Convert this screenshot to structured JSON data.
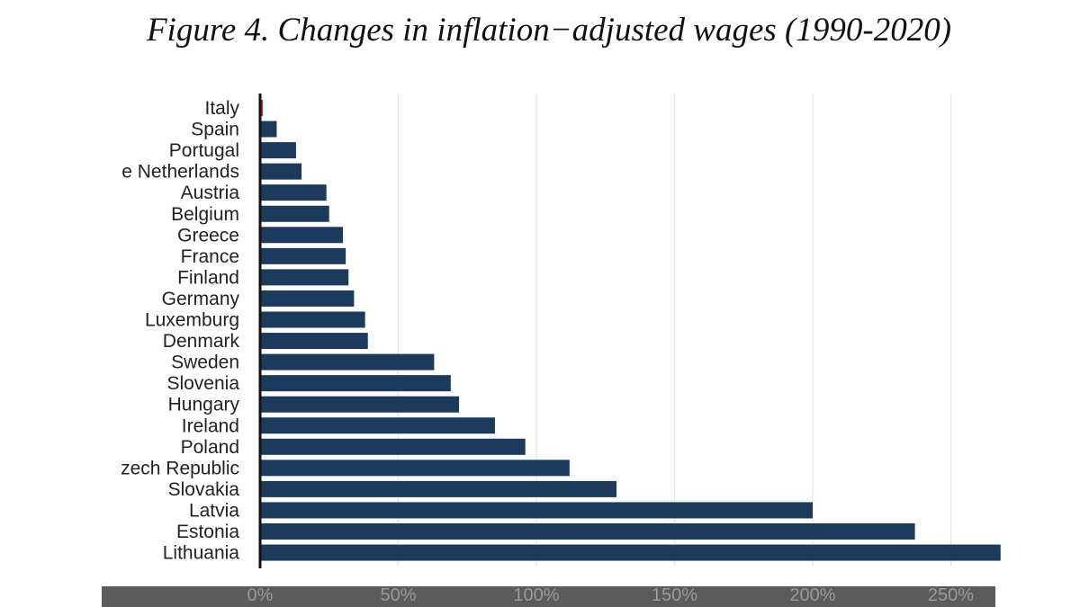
{
  "title": "Figure 4. Changes in inflation−adjusted wages (1990-2020)",
  "chart_data": {
    "type": "bar",
    "orientation": "horizontal",
    "title": "Figure 4. Changes in inflation−adjusted wages (1990-2020)",
    "xlabel": "",
    "ylabel": "",
    "categories": [
      "Italy",
      "Spain",
      "Portugal",
      "e Netherlands",
      "Austria",
      "Belgium",
      "Greece",
      "France",
      "Finland",
      "Germany",
      "Luxemburg",
      "Denmark",
      "Sweden",
      "Slovenia",
      "Hungary",
      "Ireland",
      "Poland",
      "zech Republic",
      "Slovakia",
      "Latvia",
      "Estonia",
      "Lithuania"
    ],
    "values": [
      1,
      6,
      13,
      15,
      24,
      25,
      30,
      31,
      32,
      34,
      38,
      39,
      63,
      69,
      72,
      85,
      96,
      112,
      129,
      200,
      237,
      276
    ],
    "xlim": [
      0,
      268
    ],
    "xticks": [
      0,
      50,
      100,
      150,
      200,
      250
    ],
    "xtick_labels": [
      "0%",
      "50%",
      "100%",
      "150%",
      "200%",
      "250%"
    ],
    "grid": "vertical",
    "colors": {
      "bar": "#1b3a5c",
      "highlight": "#b5342a",
      "grid": "#e4e4e4",
      "axis": "#111111"
    },
    "highlight_category": "Italy"
  }
}
